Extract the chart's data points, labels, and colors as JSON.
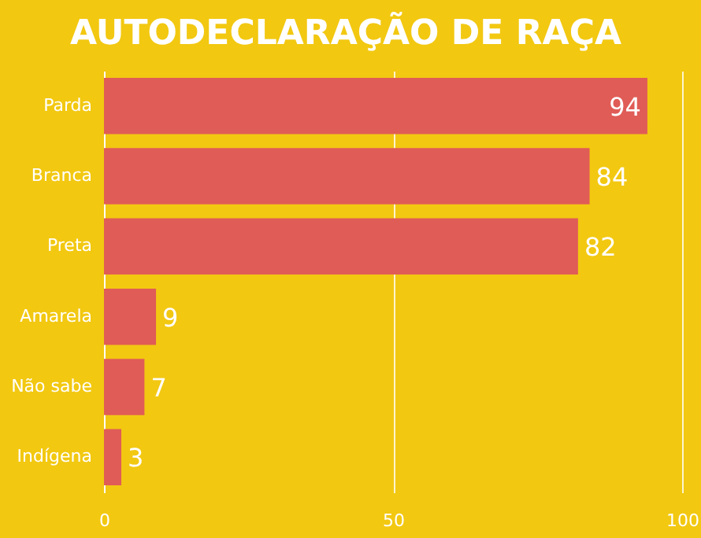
{
  "chart_data": {
    "type": "bar",
    "orientation": "horizontal",
    "title": "AUTODECLARAÇÃO DE RAÇA",
    "categories": [
      "Parda",
      "Branca",
      "Preta",
      "Amarela",
      "Não sabe",
      "Indígena"
    ],
    "values": [
      94,
      84,
      82,
      9,
      7,
      3
    ],
    "color": "#e05c57",
    "xlim": [
      0,
      100
    ],
    "xticks": [
      0,
      50,
      100
    ],
    "grid": "x",
    "data_labels": true
  }
}
